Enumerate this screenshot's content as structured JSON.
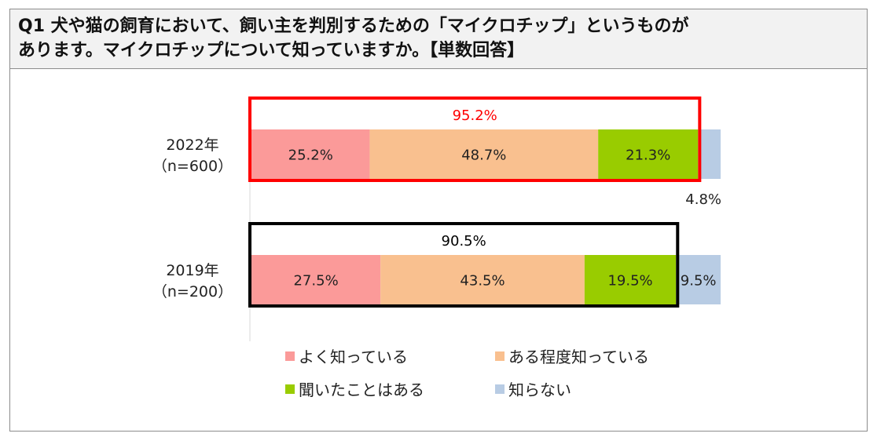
{
  "question": {
    "line1": "Q1 犬や猫の飼育において、飼い主を判別するための「マイクロチップ」というものが",
    "line2": "あります。マイクロチップについて知っていますか。【単数回答】"
  },
  "chart_data": {
    "type": "bar",
    "orientation": "horizontal-stacked",
    "categories": [
      {
        "year": "2022年",
        "n": "（n=600）"
      },
      {
        "year": "2019年",
        "n": "（n=200）"
      }
    ],
    "series": [
      {
        "name": "よく知っている",
        "color": "#fb9a99",
        "values": [
          25.2,
          27.5
        ],
        "labels": [
          "25.2%",
          "27.5%"
        ]
      },
      {
        "name": "ある程度知っている",
        "color": "#f9c08f",
        "values": [
          48.7,
          43.5
        ],
        "labels": [
          "48.7%",
          "43.5%"
        ]
      },
      {
        "name": "聞いたことはある",
        "color": "#99cc00",
        "values": [
          21.3,
          19.5
        ],
        "labels": [
          "21.3%",
          "19.5%"
        ]
      },
      {
        "name": "知らない",
        "color": "#b8cce4",
        "values": [
          4.8,
          9.5
        ],
        "labels": [
          "4.8%",
          "9.5%"
        ]
      }
    ],
    "totals": [
      {
        "label": "95.2%",
        "color": "#ff0000"
      },
      {
        "label": "90.5%",
        "color": "#000000"
      }
    ],
    "xlim": [
      0,
      100
    ],
    "legend_position": "bottom"
  }
}
